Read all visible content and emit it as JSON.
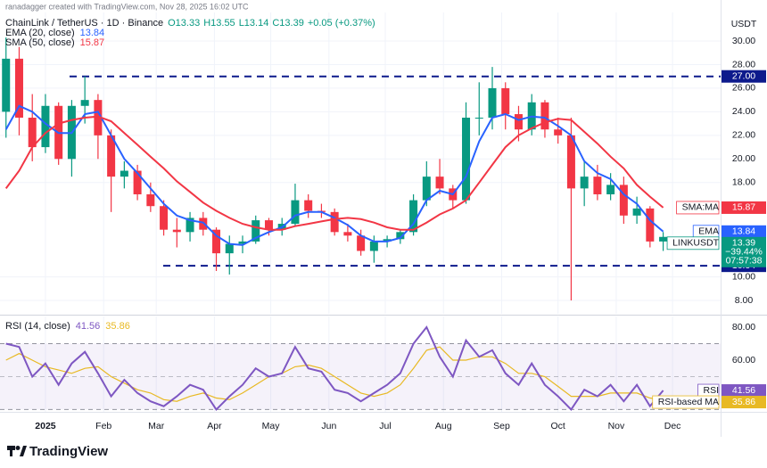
{
  "header": {
    "watermark": "ranadagger created with TradingView.com, Nov 28, 2025 16:02 UTC"
  },
  "chart_data": {
    "type": "candlestick",
    "title": "ChainLink / TetherUS · 1D · Binance",
    "ohlc": [
      "O13.33",
      "H13.55",
      "L13.14",
      "C13.39",
      "+0.05 (+0.37%)"
    ],
    "currency": "USDT",
    "symbol": "LINKUSDT",
    "change": "−39.44%",
    "countdown": "07:57:38",
    "up_color": "#089981",
    "down_color": "#f23645",
    "grid": true,
    "x": [
      -21,
      -14,
      -7,
      0,
      7,
      14,
      21,
      28,
      35,
      42,
      49,
      56,
      63,
      70,
      77,
      84,
      91,
      98,
      105,
      112,
      119,
      126,
      133,
      140,
      147,
      154,
      161,
      168,
      175,
      182,
      189,
      196,
      203,
      210,
      217,
      224,
      231,
      238,
      245,
      252,
      259,
      266,
      273,
      280,
      287,
      294,
      301,
      308,
      315,
      322,
      329
    ],
    "open": [
      24,
      28.5,
      23.5,
      21,
      24.5,
      20,
      24.5,
      25,
      22,
      18.5,
      19,
      17,
      16,
      14,
      13.8,
      15,
      14,
      12,
      12.8,
      13,
      14.8,
      14,
      14.5,
      16.5,
      15.6,
      15.5,
      13.8,
      13.5,
      12.2,
      13,
      13.2,
      13.8,
      16.5,
      18.5,
      17.5,
      16.5,
      23.5,
      23.5,
      26,
      23.8,
      22.5,
      24.8,
      22.5,
      22,
      17.5,
      18.5,
      17,
      17.8,
      15.2,
      15.8,
      13
    ],
    "high": [
      30.3,
      29.5,
      25.5,
      25.5,
      24.8,
      25,
      27,
      25.5,
      22.5,
      19.8,
      19.5,
      18,
      16.5,
      15,
      15.5,
      15.5,
      14.2,
      13.5,
      13.5,
      15.2,
      15,
      15,
      17.9,
      17,
      16.2,
      15.8,
      14.5,
      14,
      13.5,
      13.5,
      14,
      17,
      19.8,
      20,
      17.8,
      24.8,
      26.5,
      27.8,
      26.5,
      24.5,
      25.5,
      25,
      23.5,
      23.5,
      19.8,
      19.5,
      18.8,
      18.5,
      16.8,
      16,
      13.8
    ],
    "low": [
      21.8,
      22,
      19.8,
      20.5,
      19.5,
      18.5,
      23,
      20,
      15.5,
      17.5,
      16.5,
      15.5,
      13.5,
      12.5,
      13,
      13.5,
      10.5,
      10.2,
      12,
      12.8,
      13.5,
      13.5,
      14.3,
      15,
      15,
      13.5,
      13,
      11.8,
      11.2,
      12.5,
      12.8,
      13.5,
      16,
      17,
      15.8,
      16.2,
      22,
      22.5,
      22.5,
      21.5,
      22,
      21.8,
      21.3,
      8,
      16,
      16.5,
      16.5,
      14.5,
      14.5,
      12.5,
      12.2
    ],
    "close": [
      28.5,
      23.5,
      21,
      24.5,
      20,
      24.5,
      25,
      22,
      18.5,
      19,
      17,
      16,
      14,
      13.8,
      15,
      14,
      12,
      12.8,
      13,
      14.8,
      14,
      14.5,
      16.5,
      15.6,
      15.5,
      13.8,
      13.5,
      12.2,
      13,
      13.2,
      13.8,
      16.5,
      18.5,
      17.5,
      16.5,
      23.5,
      23.5,
      26,
      23.8,
      22.5,
      24.8,
      22.5,
      22,
      17.5,
      18.5,
      17,
      17.8,
      15.2,
      15.8,
      13,
      13.39
    ],
    "xlim": [
      -24.2,
      359.6
    ],
    "xticks": [
      {
        "value": 0,
        "label": "2025"
      },
      {
        "value": 31,
        "label": "Feb"
      },
      {
        "value": 59,
        "label": "Mar"
      },
      {
        "value": 90,
        "label": "Apr"
      },
      {
        "value": 120,
        "label": "May"
      },
      {
        "value": 151,
        "label": "Jun"
      },
      {
        "value": 181,
        "label": "Jul"
      },
      {
        "value": 212,
        "label": "Aug"
      },
      {
        "value": 243,
        "label": "Sep"
      },
      {
        "value": 273,
        "label": "Oct"
      },
      {
        "value": 304,
        "label": "Nov"
      },
      {
        "value": 334,
        "label": "Dec"
      }
    ],
    "ylim": [
      6.87,
      32.42
    ],
    "yticks": [
      {
        "value": 8,
        "label": "8.00"
      },
      {
        "value": 10,
        "label": "10.00"
      },
      {
        "value": 18,
        "label": "18.00"
      },
      {
        "value": 20,
        "label": "20.00"
      },
      {
        "value": 22,
        "label": "22.00"
      },
      {
        "value": 24,
        "label": "24.00"
      },
      {
        "value": 26,
        "label": "26.00"
      },
      {
        "value": 28,
        "label": "28.00"
      },
      {
        "value": 30,
        "label": "30.00"
      }
    ],
    "levels": [
      {
        "value": 27,
        "label": "27.00"
      },
      10.94
    ],
    "level_color": "#0d1a8c",
    "indicators": [
      {
        "name": "EMA",
        "label": "EMA (20, close)",
        "color": "#2962ff",
        "values": [
          22.5,
          24.5,
          24,
          23,
          22.2,
          22.2,
          23.8,
          24,
          22,
          20,
          18.8,
          17.5,
          16.2,
          15.2,
          14.8,
          14.6,
          13.5,
          12.8,
          12.7,
          13.3,
          13.8,
          14.2,
          15.2,
          15.5,
          15.5,
          15,
          14.4,
          13.5,
          13,
          13,
          13.3,
          14.5,
          16.5,
          17.3,
          17,
          18.5,
          21.5,
          23.5,
          23.8,
          23.3,
          23.6,
          23.5,
          22.8,
          22,
          19.8,
          18.8,
          18.3,
          17,
          16.2,
          14.8,
          13.84
        ]
      },
      {
        "name": "SMA:MA",
        "label": "SMA (50, close)",
        "color": "#f23645",
        "values": [
          17.5,
          19,
          21,
          22.2,
          23,
          23.3,
          23.5,
          23.6,
          23.2,
          22.2,
          21.2,
          20.2,
          19.2,
          18.1,
          17.2,
          16.3,
          15.6,
          15,
          14.5,
          14.2,
          14,
          14,
          14.3,
          14.5,
          14.7,
          14.9,
          15,
          14.9,
          14.6,
          14.2,
          14,
          14,
          14.6,
          15.3,
          15.8,
          16.5,
          18,
          19.5,
          21,
          22,
          22.6,
          23.1,
          23.4,
          23.3,
          22.3,
          21.3,
          20.2,
          19.2,
          17.8,
          16.8,
          15.87
        ]
      }
    ],
    "rsi": {
      "label": "RSI (14, close)",
      "name": "RSI",
      "color": "#7e57c2",
      "values": [
        70,
        68,
        50,
        58,
        45,
        58,
        65,
        52,
        38,
        48,
        40,
        35,
        32,
        38,
        45,
        42,
        30,
        38,
        45,
        55,
        50,
        52,
        68,
        55,
        53,
        42,
        40,
        35,
        40,
        45,
        52,
        70,
        80,
        62,
        50,
        72,
        62,
        66,
        52,
        45,
        58,
        45,
        38,
        30,
        42,
        38,
        45,
        35,
        45,
        32,
        41.56
      ],
      "ma_name": "RSI-based MA",
      "ma_color": "#e8b923",
      "ma_values": [
        60,
        64,
        60,
        56,
        54,
        52,
        55,
        56,
        50,
        46,
        42,
        40,
        36,
        35,
        38,
        40,
        37,
        36,
        40,
        45,
        50,
        52,
        56,
        57,
        55,
        50,
        45,
        40,
        38,
        40,
        45,
        55,
        66,
        68,
        60,
        60,
        62,
        62,
        58,
        52,
        52,
        50,
        44,
        38,
        38,
        38,
        40,
        40,
        40,
        37,
        35.86
      ],
      "ylim": [
        28.6,
        86.5
      ],
      "yticks": [
        {
          "value": 60,
          "label": "60.00"
        },
        {
          "value": 80,
          "label": "80.00"
        }
      ],
      "bands": [
        70,
        50,
        30
      ]
    }
  },
  "footer": {
    "logo": "TradingView"
  }
}
